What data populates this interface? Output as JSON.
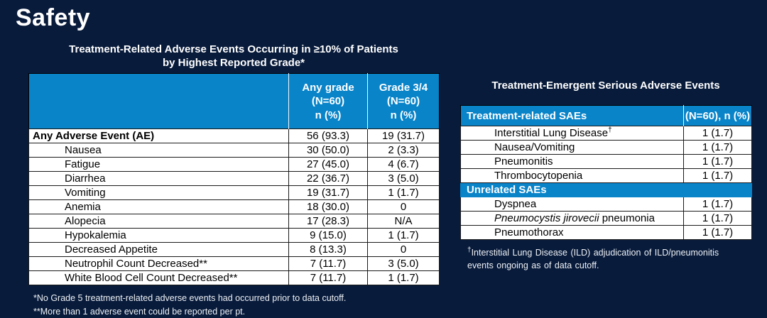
{
  "page": {
    "title": "Safety",
    "background_color": "#081B3B",
    "accent_blue": "#0984C9"
  },
  "left_table": {
    "title_line1": "Treatment-Related Adverse Events Occurring in ≥10% of Patients",
    "title_line2": "by Highest Reported Grade*",
    "col_headers": {
      "col1": "",
      "col2": "Any grade\n(N=60)\nn (%)",
      "col3": "Grade 3/4\n(N=60)\nn (%)"
    },
    "rows": [
      {
        "label": "Any Adverse Event (AE)",
        "bold": true,
        "values": [
          "56 (93.3)",
          "19 (31.7)"
        ]
      },
      {
        "label": "Nausea",
        "bold": false,
        "values": [
          "30 (50.0)",
          "2 (3.3)"
        ]
      },
      {
        "label": "Fatigue",
        "bold": false,
        "values": [
          "27 (45.0)",
          "4 (6.7)"
        ]
      },
      {
        "label": "Diarrhea",
        "bold": false,
        "values": [
          "22 (36.7)",
          "3 (5.0)"
        ]
      },
      {
        "label": "Vomiting",
        "bold": false,
        "values": [
          "19 (31.7)",
          "1 (1.7)"
        ]
      },
      {
        "label": "Anemia",
        "bold": false,
        "values": [
          "18 (30.0)",
          "0"
        ]
      },
      {
        "label": "Alopecia",
        "bold": false,
        "values": [
          "17 (28.3)",
          "N/A"
        ]
      },
      {
        "label": "Hypokalemia",
        "bold": false,
        "values": [
          "9 (15.0)",
          "1 (1.7)"
        ]
      },
      {
        "label": "Decreased Appetite",
        "bold": false,
        "values": [
          "8 (13.3)",
          "0"
        ]
      },
      {
        "label": "Neutrophil Count Decreased**",
        "bold": false,
        "values": [
          "7 (11.7)",
          "3 (5.0)"
        ]
      },
      {
        "label": "White Blood Cell Count Decreased**",
        "bold": false,
        "values": [
          "7 (11.7)",
          "1 (1.7)"
        ]
      }
    ],
    "footnotes": [
      "*No Grade 5 treatment-related adverse events had occurred prior to data cutoff.",
      "**More than 1 adverse event could be reported per pt."
    ]
  },
  "right_table": {
    "title": "Treatment-Emergent Serious Adverse Events",
    "header_col1": "Treatment-related SAEs",
    "header_col2": "(N=60), n (%)",
    "rows": [
      {
        "label": "Interstitial Lung Disease",
        "sup": "†",
        "value": "1 (1.7)"
      },
      {
        "label": "Nausea/Vomiting",
        "value": "1 (1.7)"
      },
      {
        "label": "Pneumonitis",
        "value": "1 (1.7)"
      },
      {
        "label": "Thrombocytopenia",
        "value": "1 (1.7)"
      },
      {
        "section": "Unrelated SAEs"
      },
      {
        "label": "Dyspnea",
        "value": "1 (1.7)"
      },
      {
        "italic": "Pneumocystis jirovecii",
        "label": " pneumonia",
        "value": "1 (1.7)"
      },
      {
        "label": "Pneumothorax",
        "value": "1 (1.7)"
      }
    ],
    "footnote_sup": "†",
    "footnote_text": "Interstitial Lung Disease (ILD) adjudication of ILD/pneumonitis events ongoing as of data cutoff."
  }
}
